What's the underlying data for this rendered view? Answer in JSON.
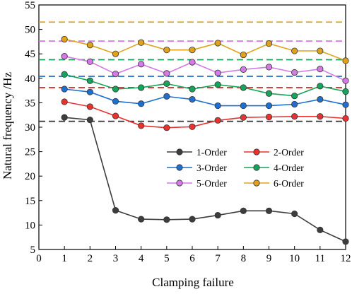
{
  "chart_data": {
    "type": "line",
    "title": "",
    "xlabel": "Clamping failure",
    "ylabel": "Natural frequency /Hz",
    "xlim": [
      0,
      12
    ],
    "ylim": [
      5,
      55
    ],
    "xticks": [
      0,
      1,
      2,
      3,
      4,
      5,
      6,
      7,
      8,
      9,
      10,
      11,
      12
    ],
    "yticks": [
      5,
      10,
      15,
      20,
      25,
      30,
      35,
      40,
      45,
      50,
      55
    ],
    "grid": false,
    "legend_position": "center-right",
    "x": [
      1,
      2,
      3,
      4,
      5,
      6,
      7,
      8,
      9,
      10,
      11,
      12
    ],
    "series": [
      {
        "name": "1-Order",
        "color": "#3d3d3d",
        "values": [
          32.0,
          31.5,
          13.0,
          11.2,
          11.1,
          11.2,
          12.0,
          12.9,
          12.9,
          12.3,
          9.0,
          6.6
        ],
        "baseline": 31.2
      },
      {
        "name": "2-Order",
        "color": "#e8322f",
        "values": [
          35.2,
          34.2,
          32.3,
          30.3,
          29.9,
          30.1,
          31.4,
          32.0,
          32.1,
          32.2,
          32.2,
          31.8
        ],
        "baseline": 38.1
      },
      {
        "name": "3-Order",
        "color": "#1f6fd1",
        "values": [
          37.8,
          37.2,
          35.3,
          34.8,
          36.3,
          35.7,
          34.4,
          34.4,
          34.4,
          34.7,
          35.7,
          34.6
        ],
        "baseline": 40.4
      },
      {
        "name": "4-Order",
        "color": "#16a45a",
        "values": [
          40.8,
          39.5,
          37.8,
          38.1,
          38.9,
          37.8,
          38.7,
          38.1,
          36.9,
          36.4,
          38.4,
          37.3
        ],
        "baseline": 43.8
      },
      {
        "name": "5-Order",
        "color": "#d37ae5",
        "values": [
          44.5,
          43.4,
          40.9,
          42.9,
          41.0,
          43.3,
          41.1,
          41.8,
          42.3,
          41.2,
          41.9,
          39.5
        ],
        "baseline": 47.6
      },
      {
        "name": "6-Order",
        "color": "#e1a21b",
        "values": [
          48.0,
          46.8,
          45.0,
          47.3,
          45.8,
          45.8,
          47.2,
          44.8,
          47.1,
          45.6,
          45.6,
          43.6
        ],
        "baseline": 51.5
      }
    ]
  }
}
